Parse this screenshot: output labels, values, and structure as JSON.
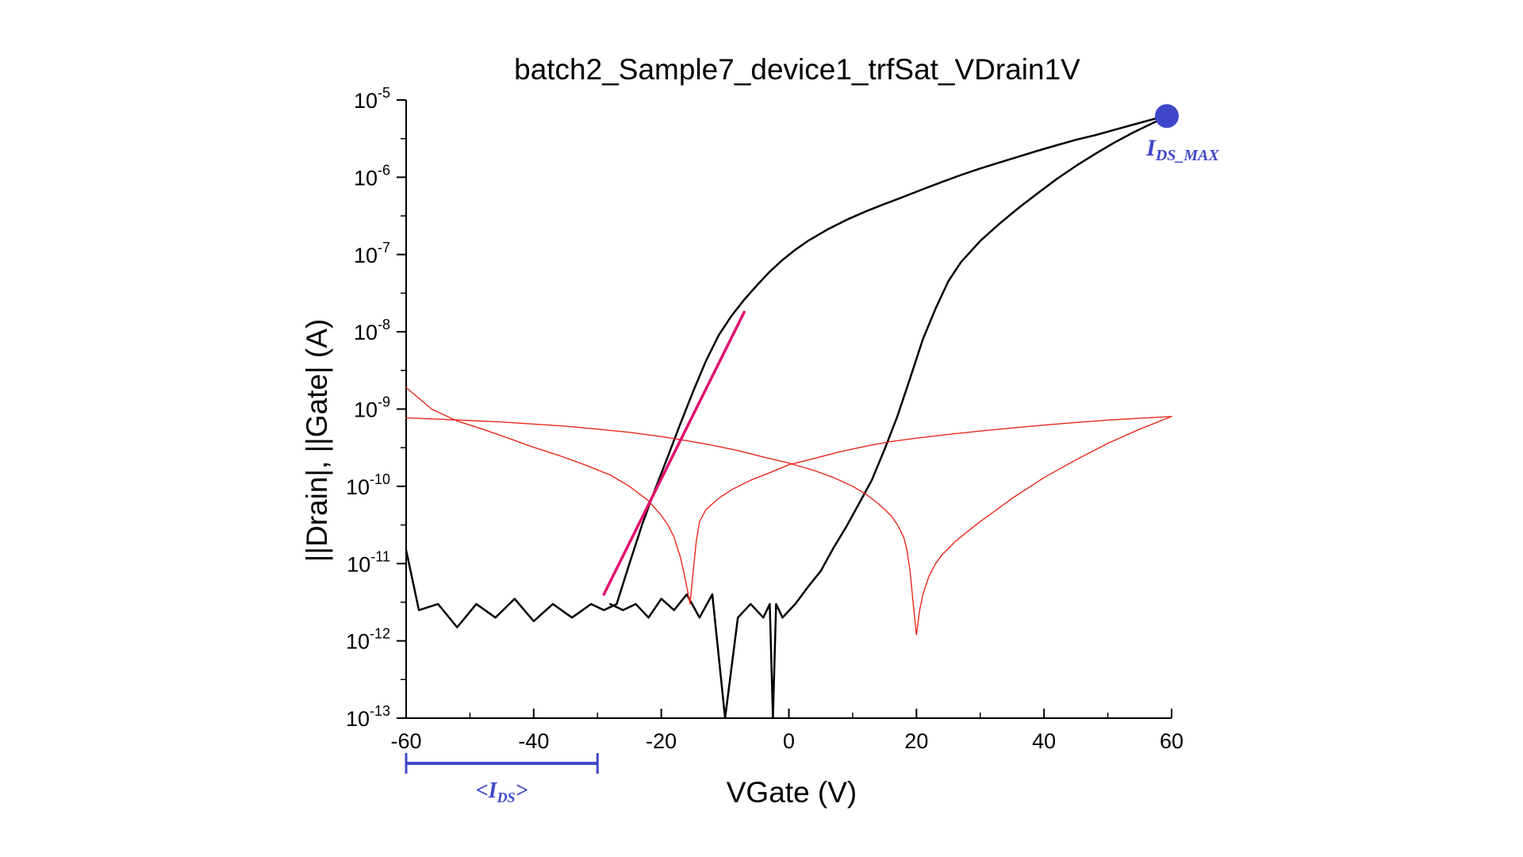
{
  "chart_data": {
    "type": "line",
    "title": "batch2_Sample7_device1_trfSat_VDrain1V",
    "xlabel": "VGate (V)",
    "ylabel": "||Drain|, ||Gate| (A)",
    "xlim": [
      -60,
      60
    ],
    "ylim": [
      1e-13,
      1e-05
    ],
    "yscale": "log",
    "grid": false,
    "x_ticks": [
      "-60",
      "-40",
      "-20",
      "0",
      "20",
      "40",
      "60"
    ],
    "y_ticks": [
      {
        "base": "10",
        "exp": "-5"
      },
      {
        "base": "10",
        "exp": "-6"
      },
      {
        "base": "10",
        "exp": "-7"
      },
      {
        "base": "10",
        "exp": "-8"
      },
      {
        "base": "10",
        "exp": "-9"
      },
      {
        "base": "10",
        "exp": "-10"
      },
      {
        "base": "10",
        "exp": "-11"
      },
      {
        "base": "10",
        "exp": "-12"
      },
      {
        "base": "10",
        "exp": "-13"
      }
    ],
    "series": [
      {
        "color": "#000000",
        "x": [
          -60,
          -58,
          -55,
          -52,
          -49,
          -46,
          -43,
          -40,
          -37,
          -34,
          -31,
          -29,
          -27,
          -25,
          -23,
          -21,
          -19,
          -17,
          -15,
          -13,
          -11,
          -9,
          -7,
          -5,
          -3,
          -1,
          1,
          3,
          6,
          9,
          12,
          15,
          18,
          21,
          24,
          27,
          30,
          33,
          36,
          39,
          42,
          45,
          48,
          51,
          54,
          57,
          60
        ],
        "y": [
          1.5e-11,
          2.5e-12,
          3e-12,
          1.5e-12,
          3e-12,
          2e-12,
          3.5e-12,
          1.8e-12,
          3e-12,
          2e-12,
          3e-12,
          2.5e-12,
          3e-12,
          1e-11,
          3.2e-11,
          9e-11,
          2.4e-10,
          6.5e-10,
          1.7e-09,
          4.2e-09,
          9e-09,
          1.6e-08,
          2.6e-08,
          4e-08,
          6e-08,
          8.5e-08,
          1.15e-07,
          1.5e-07,
          2.1e-07,
          2.8e-07,
          3.6e-07,
          4.5e-07,
          5.6e-07,
          7e-07,
          8.7e-07,
          1.07e-06,
          1.3e-06,
          1.55e-06,
          1.85e-06,
          2.2e-06,
          2.6e-06,
          3.05e-06,
          3.5e-06,
          4.1e-06,
          4.8e-06,
          5.6e-06,
          6.5e-06
        ]
      },
      {
        "color": "#000000",
        "x": [
          60,
          57,
          54,
          51,
          48,
          45,
          42,
          39,
          36,
          33,
          30,
          27,
          25,
          23,
          21,
          19,
          17,
          15,
          13,
          11,
          9,
          7,
          5,
          3,
          1,
          -1,
          -2,
          -2.5,
          -3,
          -4,
          -6,
          -8,
          -10,
          -12,
          -14,
          -16,
          -18,
          -20,
          -22,
          -24,
          -26,
          -28
        ],
        "y": [
          6.5e-06,
          5e-06,
          3.8e-06,
          2.8e-06,
          2e-06,
          1.4e-06,
          9.5e-07,
          6.2e-07,
          4e-07,
          2.5e-07,
          1.5e-07,
          8e-08,
          4.5e-08,
          2e-08,
          8e-09,
          2.5e-09,
          8e-10,
          3e-10,
          1.2e-10,
          6e-11,
          3e-11,
          1.6e-11,
          8e-12,
          5e-12,
          3e-12,
          2e-12,
          3e-12,
          1e-13,
          3e-12,
          2e-12,
          3e-12,
          2e-12,
          1e-13,
          4e-12,
          2e-12,
          4e-12,
          2.5e-12,
          3.5e-12,
          2e-12,
          3e-12,
          2.5e-12,
          3e-12
        ]
      },
      {
        "color": "#e8291c",
        "x": [
          -60,
          -56,
          -52,
          -48,
          -44,
          -40,
          -36,
          -32,
          -28,
          -25,
          -22,
          -20,
          -19,
          -18,
          -17,
          -16.5,
          -16,
          -15.5,
          -15,
          -14.5,
          -14,
          -13,
          -11,
          -9,
          -6,
          -3,
          0,
          4,
          8,
          12,
          16,
          20,
          25,
          30,
          35,
          40,
          45,
          50,
          55,
          60
        ],
        "y": [
          1.9e-09,
          1e-09,
          7e-10,
          5.5e-10,
          4.2e-10,
          3.2e-10,
          2.5e-10,
          1.9e-10,
          1.4e-10,
          1e-10,
          6.5e-11,
          4.2e-11,
          3.2e-11,
          2.2e-11,
          1.2e-11,
          8e-12,
          5e-12,
          3e-12,
          8e-12,
          2e-11,
          3.5e-11,
          5e-11,
          7e-11,
          9e-11,
          1.2e-10,
          1.5e-10,
          1.9e-10,
          2.3e-10,
          2.8e-10,
          3.3e-10,
          3.8e-10,
          4.2e-10,
          4.7e-10,
          5.2e-10,
          5.7e-10,
          6.2e-10,
          6.7e-10,
          7.2e-10,
          7.6e-10,
          8e-10
        ]
      },
      {
        "color": "#e8291c",
        "x": [
          60,
          55,
          50,
          45,
          40,
          35,
          30,
          28,
          26,
          24,
          23,
          22,
          21,
          20.5,
          20,
          19.5,
          19,
          18.5,
          18,
          17,
          16,
          14,
          12,
          10,
          7,
          4,
          0,
          -4,
          -8,
          -12,
          -16,
          -20,
          -25,
          -30,
          -35,
          -40,
          -45,
          -50,
          -55,
          -60
        ],
        "y": [
          8e-10,
          5.5e-10,
          3.6e-10,
          2.2e-10,
          1.3e-10,
          7e-11,
          3.5e-11,
          2.6e-11,
          1.9e-11,
          1.3e-11,
          1e-11,
          7e-12,
          4e-12,
          2.5e-12,
          1.2e-12,
          3e-12,
          8e-12,
          1.5e-11,
          2.2e-11,
          3.2e-11,
          4.2e-11,
          6e-11,
          8e-11,
          1e-10,
          1.3e-10,
          1.6e-10,
          2e-10,
          2.4e-10,
          2.9e-10,
          3.4e-10,
          3.9e-10,
          4.4e-10,
          5e-10,
          5.5e-10,
          6e-10,
          6.4e-10,
          6.8e-10,
          7.1e-10,
          7.4e-10,
          7.7e-10
        ]
      },
      {
        "color": "#e0116e",
        "x": [
          -29,
          -7
        ],
        "y": [
          4e-12,
          1.8e-08
        ]
      }
    ],
    "annotations": {
      "ids_max": {
        "label": "I",
        "sub": "DS_MAX",
        "x": 60,
        "y": 6.5e-06,
        "color": "#3f47c9"
      },
      "ids_range": {
        "label": "<I",
        "sub": "DS",
        "suffix": ">",
        "x_from": -60,
        "x_to": -30,
        "color": "#3f47c9"
      }
    }
  }
}
